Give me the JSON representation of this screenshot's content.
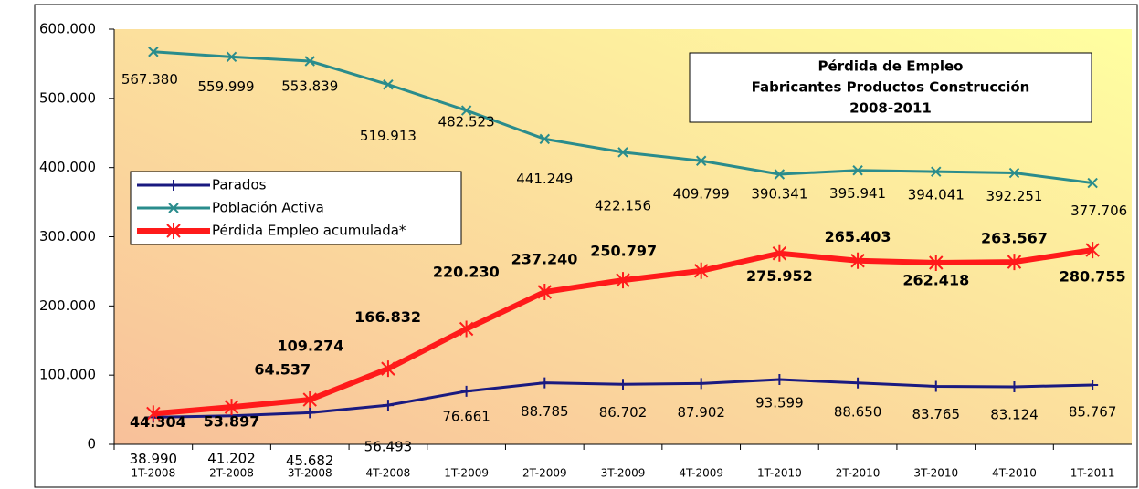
{
  "chart_data": {
    "type": "line",
    "title": [
      "Pérdida de Empleo",
      "Fabricantes Productos Construcción",
      "2008-2011"
    ],
    "categories": [
      "1T-2008",
      "2T-2008",
      "3T-2008",
      "4T-2008",
      "1T-2009",
      "2T-2009",
      "3T-2009",
      "4T-2009",
      "1T-2010",
      "2T-2010",
      "3T-2010",
      "4T-2010",
      "1T-2011"
    ],
    "ylim": [
      0,
      600000
    ],
    "yticks": [
      0,
      {
        "value": 100000,
        "label": "100.000"
      },
      {
        "value": 200000,
        "label": "200.000"
      },
      {
        "value": 300000,
        "label": "300.000"
      },
      {
        "value": 400000,
        "label": "400.000"
      },
      {
        "value": 500000,
        "label": "500.000"
      },
      {
        "value": 600000,
        "label": "600.000"
      }
    ],
    "grid": false,
    "legend": "upper left",
    "series": [
      {
        "name": "Parados",
        "color": "#1a1a80",
        "values": [
          38990,
          41202,
          45682,
          56493,
          76661,
          88785,
          86702,
          87902,
          93599,
          88650,
          83765,
          83124,
          85767
        ],
        "value_labels": [
          "38.990",
          "41.202",
          "45.682",
          "56.493",
          "76.661",
          "88.785",
          "86.702",
          "87.902",
          "93.599",
          "88.650",
          "83.765",
          "83.124",
          "85.767"
        ]
      },
      {
        "name": "Población Activa",
        "color": "#2a8c8c",
        "values": [
          567380,
          559999,
          553839,
          519913,
          482523,
          441249,
          422156,
          409799,
          390341,
          395941,
          394041,
          392251,
          377706
        ],
        "value_labels": [
          "567.380",
          "559.999",
          "553.839",
          "519.913",
          "482.523",
          "441.249",
          "422.156",
          "409.799",
          "390.341",
          "395.941",
          "394.041",
          "392.251",
          "377.706"
        ]
      },
      {
        "name": "Pérdida Empleo acumulada*",
        "color": "#ff1a1a",
        "values": [
          44304,
          53897,
          64537,
          109274,
          166832,
          220230,
          237240,
          250797,
          275952,
          265403,
          262418,
          263567,
          280755
        ],
        "value_labels": [
          "44.304",
          "53.897",
          "64.537",
          "109.274",
          "166.832",
          "220.230",
          "237.240",
          "250.797",
          "275.952",
          "265.403",
          "262.418",
          "263.567",
          "280.755"
        ]
      }
    ]
  }
}
